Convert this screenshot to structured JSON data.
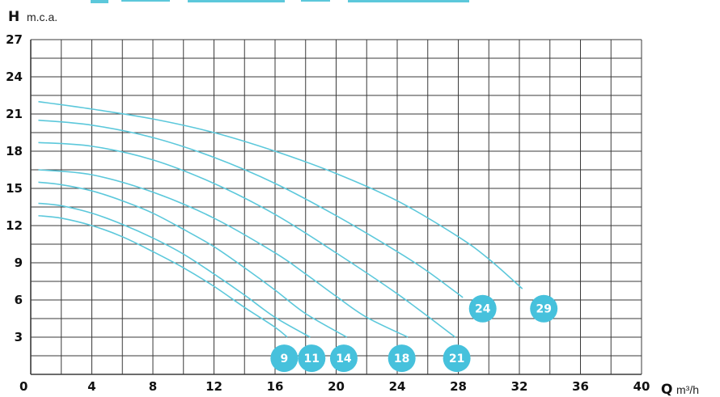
{
  "chart_data": {
    "type": "line",
    "y_axis": {
      "symbol": "H",
      "unit": "m.c.a.",
      "ticks": [
        0,
        3,
        6,
        9,
        12,
        15,
        18,
        21,
        24,
        27
      ],
      "range": [
        0,
        27
      ]
    },
    "x_axis": {
      "symbol": "Q",
      "unit": "m³/h",
      "ticks": [
        4,
        8,
        12,
        16,
        20,
        24,
        28,
        32,
        36,
        40
      ],
      "range": [
        0,
        40
      ]
    },
    "grid": true,
    "colors": {
      "curve": "#5cc8db",
      "badge": "#46c1dc",
      "grid": "#3a3a3a",
      "text": "#111111"
    },
    "series": [
      {
        "name": "9",
        "badge": {
          "x": 16.6,
          "y": 1.3
        },
        "points": [
          [
            0.5,
            12.8
          ],
          [
            2,
            12.6
          ],
          [
            4,
            12.0
          ],
          [
            6,
            11.1
          ],
          [
            8,
            9.9
          ],
          [
            10,
            8.6
          ],
          [
            12,
            7.1
          ],
          [
            14,
            5.4
          ],
          [
            16,
            3.8
          ],
          [
            16.8,
            3.0
          ]
        ]
      },
      {
        "name": "11",
        "badge": {
          "x": 18.4,
          "y": 1.3
        },
        "points": [
          [
            0.5,
            13.8
          ],
          [
            2,
            13.6
          ],
          [
            4,
            13.0
          ],
          [
            6,
            12.1
          ],
          [
            8,
            11.0
          ],
          [
            10,
            9.7
          ],
          [
            12,
            8.1
          ],
          [
            14,
            6.4
          ],
          [
            16,
            4.6
          ],
          [
            18.3,
            3.0
          ]
        ]
      },
      {
        "name": "14",
        "badge": {
          "x": 20.5,
          "y": 1.3
        },
        "points": [
          [
            0.5,
            15.5
          ],
          [
            2,
            15.3
          ],
          [
            4,
            14.8
          ],
          [
            6,
            14.0
          ],
          [
            8,
            13.0
          ],
          [
            10,
            11.7
          ],
          [
            12,
            10.3
          ],
          [
            14,
            8.6
          ],
          [
            16,
            6.8
          ],
          [
            18,
            4.9
          ],
          [
            20.7,
            3.0
          ]
        ]
      },
      {
        "name": "18",
        "badge": {
          "x": 24.3,
          "y": 1.3
        },
        "points": [
          [
            0.5,
            16.5
          ],
          [
            4,
            16.1
          ],
          [
            8,
            14.7
          ],
          [
            12,
            12.6
          ],
          [
            16,
            9.8
          ],
          [
            18,
            8.1
          ],
          [
            20,
            6.3
          ],
          [
            22,
            4.6
          ],
          [
            24.7,
            3.0
          ]
        ]
      },
      {
        "name": "21",
        "badge": {
          "x": 27.9,
          "y": 1.3
        },
        "points": [
          [
            0.5,
            18.7
          ],
          [
            4,
            18.4
          ],
          [
            8,
            17.3
          ],
          [
            12,
            15.4
          ],
          [
            16,
            12.9
          ],
          [
            20,
            9.8
          ],
          [
            24,
            6.5
          ],
          [
            27.8,
            3.0
          ]
        ]
      },
      {
        "name": "24",
        "badge": {
          "x": 29.6,
          "y": 5.3
        },
        "points": [
          [
            0.5,
            20.5
          ],
          [
            4,
            20.1
          ],
          [
            8,
            19.1
          ],
          [
            12,
            17.5
          ],
          [
            16,
            15.4
          ],
          [
            20,
            12.8
          ],
          [
            24,
            9.9
          ],
          [
            26,
            8.3
          ],
          [
            28.3,
            6.2
          ]
        ]
      },
      {
        "name": "29",
        "badge": {
          "x": 33.6,
          "y": 5.3
        },
        "points": [
          [
            0.5,
            22.0
          ],
          [
            4,
            21.4
          ],
          [
            8,
            20.6
          ],
          [
            12,
            19.5
          ],
          [
            16,
            18.0
          ],
          [
            20,
            16.2
          ],
          [
            24,
            14.0
          ],
          [
            28,
            11.1
          ],
          [
            30,
            9.3
          ],
          [
            32.2,
            6.9
          ]
        ]
      }
    ]
  }
}
